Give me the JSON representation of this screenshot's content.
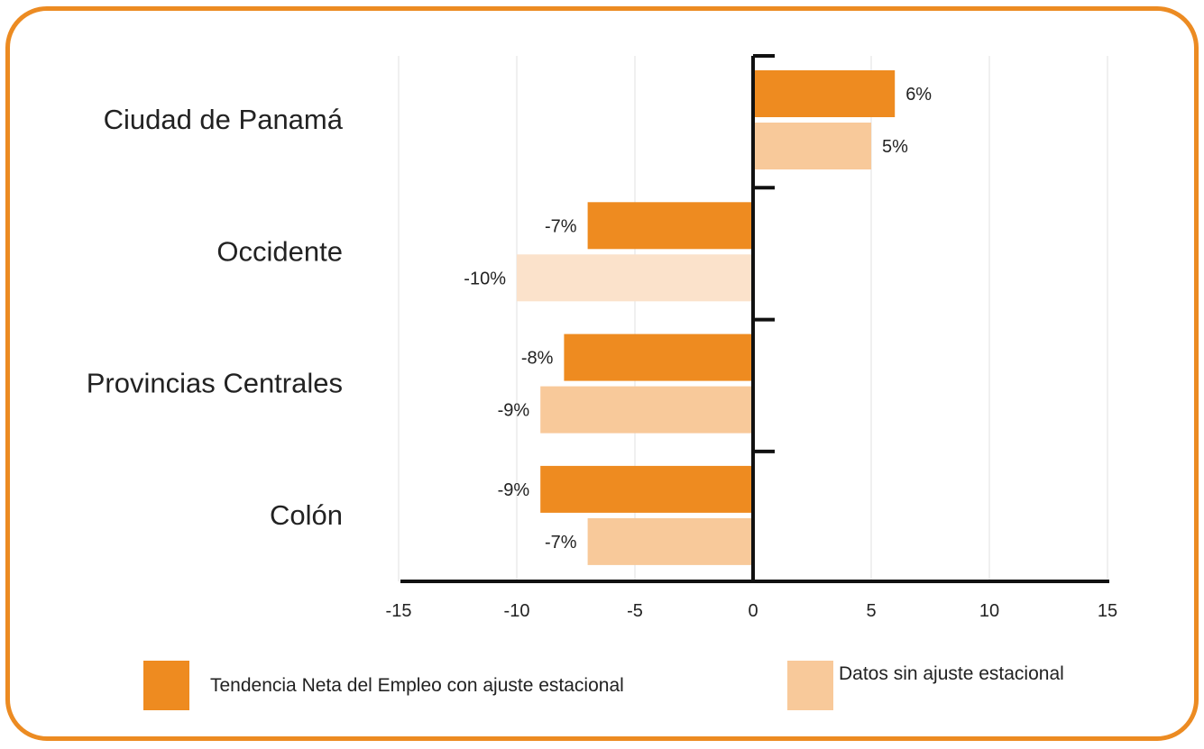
{
  "chart_data": {
    "type": "bar",
    "orientation": "horizontal",
    "categories": [
      "Ciudad de Panamá",
      "Occidente",
      "Provincias Centrales",
      "Colón"
    ],
    "series": [
      {
        "name": "Tendencia Neta del Empleo con ajuste estacional",
        "color": "#ee8b20",
        "values": [
          6,
          -7,
          -8,
          -9
        ],
        "labels": [
          "6%",
          "-7%",
          "-8%",
          "-9%"
        ]
      },
      {
        "name": "Datos sin ajuste estacional",
        "color": "#f8c99a",
        "colors": [
          "#f8c99a",
          "#fbe2cb",
          "#f8c99a",
          "#f8c99a"
        ],
        "values": [
          5,
          -10,
          -9,
          -7
        ],
        "labels": [
          "5%",
          "-10%",
          "-9%",
          "-7%"
        ]
      }
    ],
    "xlim": [
      -15,
      15
    ],
    "xticks": [
      -15,
      -10,
      -5,
      0,
      5,
      10,
      15
    ],
    "xtick_labels": [
      "-15",
      "-10",
      "-5",
      "0",
      "5",
      "10",
      "15"
    ],
    "grid": true,
    "legend_position": "bottom"
  },
  "colors": {
    "frame": "#ec8b22",
    "axis": "#111111",
    "grid": "#e2e2e2"
  }
}
